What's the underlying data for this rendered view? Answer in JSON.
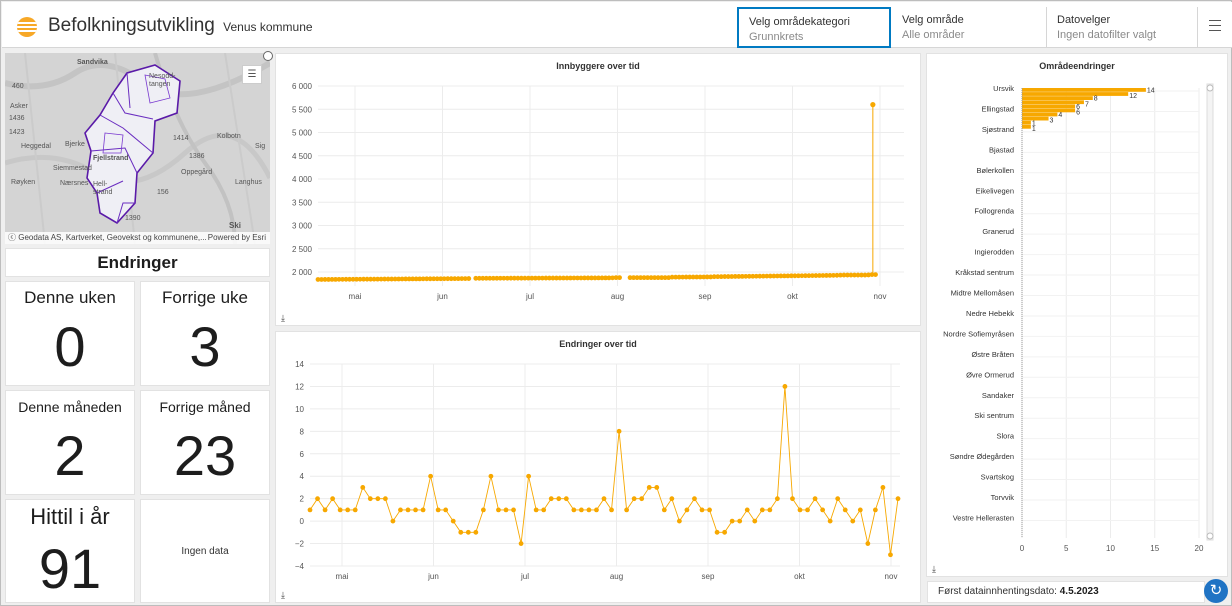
{
  "header": {
    "title": "Befolkningsutvikling",
    "subtitle": "Venus kommune",
    "selectors": [
      {
        "label": "Velg områdekategori",
        "value": "Grunnkrets"
      },
      {
        "label": "Velg område",
        "value": "Alle områder"
      },
      {
        "label": "Datovelger",
        "value": "Ingen datofilter valgt"
      }
    ],
    "menu_icon": "hamburger-menu-icon"
  },
  "map": {
    "attribution": "Geodata AS, Kartverket, Geovekst og kommunene,...",
    "powered_by": "Powered by Esri",
    "place_labels": [
      "Sandvika",
      "Nesodd-tangen",
      "Asker",
      "1436",
      "1423",
      "Heggedal",
      "Bjerke",
      "Fjellstrand",
      "Siemmestad",
      "Nærsnes",
      "Hell-strand",
      "Røyken",
      "1414",
      "Kolbotn",
      "Oppegård",
      "1386",
      "Langhus",
      "Sig",
      "Ski",
      "156",
      "1390",
      "460",
      "1414"
    ],
    "legend_icon": "legend-list-icon"
  },
  "changes": {
    "heading": "Endringer",
    "tiles": [
      {
        "label": "Denne uken",
        "value": "0"
      },
      {
        "label": "Forrige uke",
        "value": "3"
      },
      {
        "label": "Denne måneden",
        "value": "2"
      },
      {
        "label": "Forrige måned",
        "value": "23"
      },
      {
        "label": "Hittil i år",
        "value": "91"
      }
    ],
    "no_data": "Ingen data"
  },
  "footer": {
    "label": "Først datainnhentingsdato:",
    "date": "4.5.2023"
  },
  "colors": {
    "accent": "#f7a800",
    "link": "#007ac2"
  },
  "chart_data": [
    {
      "type": "scatter",
      "title": "Innbyggere over tid",
      "x_ticks": [
        "mai",
        "jun",
        "jul",
        "aug",
        "sep",
        "okt",
        "nov"
      ],
      "y_ticks": [
        "2 000",
        "2 500",
        "3 000",
        "3 500",
        "4 000",
        "4 500",
        "5 000",
        "5 500",
        "6 000"
      ],
      "ylim": [
        1700,
        6000
      ],
      "series": [
        {
          "x": [
            0,
            0.27,
            0.275,
            0.52,
            0.525,
            0.62,
            0.625,
            0.695,
            0.7,
            0.92,
            0.925,
            0.97,
            0.975,
            0.99
          ],
          "y": [
            1840,
            1860,
            1865,
            1875,
            1880,
            1880,
            1890,
            1895,
            1900,
            1930,
            1935,
            1935,
            1940,
            5600
          ]
        }
      ]
    },
    {
      "type": "line",
      "title": "Endringer over tid",
      "x_ticks": [
        "mai",
        "jun",
        "jul",
        "aug",
        "sep",
        "okt",
        "nov"
      ],
      "y_ticks": [
        "−4",
        "−2",
        "0",
        "2",
        "4",
        "6",
        "8",
        "10",
        "12",
        "14"
      ],
      "ylim": [
        -4,
        14
      ],
      "series": [
        {
          "values": [
            1,
            2,
            1,
            2,
            1,
            1,
            1,
            3,
            2,
            2,
            2,
            0,
            1,
            1,
            1,
            1,
            4,
            1,
            1,
            0,
            -1,
            -1,
            -1,
            1,
            4,
            1,
            1,
            1,
            -2,
            4,
            1,
            1,
            2,
            2,
            2,
            1,
            1,
            1,
            1,
            2,
            1,
            8,
            1,
            2,
            2,
            3,
            3,
            1,
            2,
            0,
            1,
            2,
            1,
            1,
            -1,
            -1,
            0,
            0,
            1,
            0,
            1,
            1,
            2,
            12,
            2,
            1,
            1,
            2,
            1,
            0,
            2,
            1,
            0,
            1,
            -2,
            1,
            3,
            -3,
            2
          ]
        }
      ]
    },
    {
      "type": "bar",
      "title": "Områdeendringer",
      "categories": [
        "Ursvik",
        "Ellingstad",
        "Sjøstrand",
        "Bjastad",
        "Bølerkollen",
        "Eikelivegen",
        "Follogrenda",
        "Granerud",
        "Ingierodden",
        "Kråkstad sentrum",
        "Midtre Mellomåsen",
        "Nedre Hebekk",
        "Nordre Sofiemyråsen",
        "Østre Bråten",
        "Øvre Ormerud",
        "Sandaker",
        "Ski sentrum",
        "Slora",
        "Søndre Ødegården",
        "Svartskog",
        "Torvvik",
        "Vestre Hellerasten"
      ],
      "bar_values": [
        14,
        12,
        8,
        7,
        6,
        6,
        4,
        3,
        1,
        1
      ],
      "x_ticks": [
        "0",
        "5",
        "10",
        "15",
        "20"
      ],
      "xlim": [
        0,
        20
      ]
    }
  ]
}
